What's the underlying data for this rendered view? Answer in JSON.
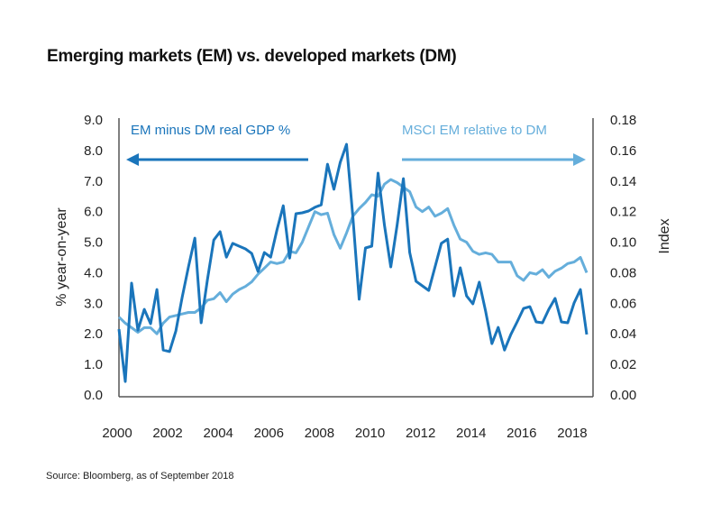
{
  "title": "Emerging markets (EM) vs. developed markets (DM)",
  "source": "Source: Bloomberg, as of September 2018",
  "colors": {
    "em_gdp": "#1a75bb",
    "msci": "#65aedb",
    "axis": "#555555",
    "text": "#222222"
  },
  "chart_data": {
    "type": "line",
    "title": "Emerging markets (EM) vs. developed markets (DM)",
    "xlabel": "",
    "ylabel": "% year-on-year",
    "y2label": "Index",
    "frequency": "quarterly",
    "x_start": 2000.0,
    "x_step": 0.25,
    "xlim": [
      2000,
      2018.75
    ],
    "xticks": [
      "2000",
      "2002",
      "2004",
      "2006",
      "2008",
      "2010",
      "2012",
      "2014",
      "2016",
      "2018"
    ],
    "xtick_values": [
      2000,
      2002,
      2004,
      2006,
      2008,
      2010,
      2012,
      2014,
      2016,
      2018
    ],
    "ylim": [
      0,
      9
    ],
    "yticks": [
      "0.0",
      "1.0",
      "2.0",
      "3.0",
      "4.0",
      "5.0",
      "6.0",
      "7.0",
      "8.0",
      "9.0"
    ],
    "y2lim": [
      0,
      0.18
    ],
    "y2ticks": [
      "0.00",
      "0.02",
      "0.04",
      "0.06",
      "0.08",
      "0.10",
      "0.12",
      "0.14",
      "0.16",
      "0.18"
    ],
    "grid": false,
    "legend": "annotations-top",
    "series": [
      {
        "name": "EM minus DM real GDP %",
        "axis": "left",
        "arrow": "left",
        "values": [
          2.15,
          0.44,
          3.66,
          2.12,
          2.8,
          2.33,
          3.45,
          1.47,
          1.42,
          2.09,
          3.19,
          4.19,
          5.13,
          2.36,
          3.78,
          5.07,
          5.34,
          4.51,
          4.96,
          4.87,
          4.78,
          4.63,
          4.04,
          4.66,
          4.51,
          5.4,
          6.19,
          4.48,
          5.93,
          5.96,
          6.02,
          6.14,
          6.22,
          7.55,
          6.73,
          7.61,
          8.2,
          5.84,
          3.13,
          4.81,
          4.87,
          7.26,
          5.55,
          4.19,
          5.55,
          7.08,
          4.66,
          3.72,
          3.57,
          3.42,
          4.19,
          4.96,
          5.1,
          3.24,
          4.16,
          3.24,
          2.98,
          3.69,
          2.74,
          1.68,
          2.21,
          1.47,
          1.98,
          2.39,
          2.83,
          2.89,
          2.39,
          2.36,
          2.8,
          3.16,
          2.39,
          2.36,
          3.01,
          3.45,
          1.98
        ]
      },
      {
        "name": "MSCI EM relative to DM",
        "axis": "right",
        "arrow": "right",
        "values": [
          0.051,
          0.047,
          0.044,
          0.041,
          0.044,
          0.044,
          0.04,
          0.047,
          0.051,
          0.052,
          0.053,
          0.054,
          0.054,
          0.057,
          0.062,
          0.063,
          0.067,
          0.061,
          0.066,
          0.069,
          0.071,
          0.074,
          0.079,
          0.083,
          0.087,
          0.086,
          0.087,
          0.094,
          0.093,
          0.1,
          0.11,
          0.12,
          0.118,
          0.119,
          0.105,
          0.096,
          0.106,
          0.117,
          0.122,
          0.126,
          0.131,
          0.13,
          0.138,
          0.141,
          0.139,
          0.136,
          0.133,
          0.123,
          0.12,
          0.123,
          0.117,
          0.119,
          0.122,
          0.111,
          0.102,
          0.1,
          0.094,
          0.092,
          0.093,
          0.092,
          0.087,
          0.087,
          0.087,
          0.078,
          0.075,
          0.08,
          0.079,
          0.082,
          0.077,
          0.081,
          0.083,
          0.086,
          0.087,
          0.09,
          0.08
        ]
      }
    ]
  }
}
